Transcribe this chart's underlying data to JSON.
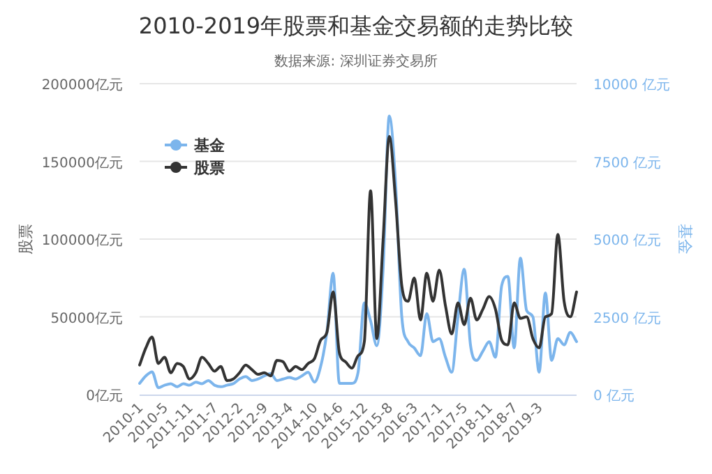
{
  "chart_data": {
    "type": "line",
    "title": "2010-2019年股票和基金交易额的走势比较",
    "subtitle": "数据来源: 深圳证券交易所",
    "ylabel": "股票",
    "y2label": "基金",
    "categories": [
      "2010-1",
      null,
      null,
      null,
      "2010-5",
      null,
      null,
      null,
      "2011-11",
      null,
      null,
      null,
      "2011-7",
      null,
      null,
      null,
      "2012-2",
      null,
      null,
      null,
      "2012-9",
      null,
      null,
      null,
      "2013-4",
      null,
      null,
      null,
      "2014-10",
      null,
      null,
      null,
      "2014-6",
      null,
      null,
      null,
      "2015-12",
      null,
      null,
      null,
      "2015-8",
      null,
      null,
      null,
      "2016-3",
      null,
      null,
      null,
      "2017-1",
      null,
      null,
      null,
      "2017-5",
      null,
      null,
      null,
      "2018-11",
      null,
      null,
      null,
      "2018-7",
      null,
      null,
      null,
      "2019-3",
      null,
      null,
      null,
      null,
      null,
      null
    ],
    "series": [
      {
        "name": "基金",
        "color": "#7cb5ec",
        "axis": "y2",
        "values": [
          360,
          600,
          730,
          220,
          300,
          350,
          250,
          350,
          300,
          400,
          350,
          450,
          300,
          250,
          300,
          350,
          500,
          580,
          450,
          500,
          600,
          670,
          450,
          500,
          550,
          500,
          600,
          720,
          400,
          900,
          2000,
          3900,
          360,
          360,
          360,
          720,
          2950,
          2370,
          1570,
          4000,
          8960,
          6800,
          2500,
          1700,
          1500,
          1250,
          2600,
          1700,
          1800,
          1200,
          720,
          2500,
          4030,
          1600,
          1100,
          1400,
          1700,
          1200,
          3500,
          3800,
          1500,
          4390,
          2700,
          2500,
          720,
          3270,
          1100,
          1800,
          1600,
          2000,
          1700
        ]
      },
      {
        "name": "股票",
        "color": "#333333",
        "values": [
          19000,
          30000,
          37000,
          20000,
          24000,
          14000,
          20000,
          18000,
          10000,
          14000,
          24000,
          20000,
          15000,
          18000,
          9000,
          10000,
          14000,
          19000,
          16000,
          13000,
          14000,
          12000,
          22000,
          21000,
          15000,
          18000,
          16000,
          20000,
          23000,
          35000,
          40000,
          66000,
          27000,
          21000,
          17000,
          25000,
          34000,
          131000,
          36000,
          99000,
          166000,
          125000,
          70000,
          60000,
          75000,
          48000,
          78000,
          60000,
          80000,
          57000,
          39000,
          59000,
          45000,
          62000,
          48000,
          55000,
          63000,
          55000,
          35000,
          32000,
          59000,
          49000,
          50000,
          36000,
          30000,
          50000,
          52000,
          103000,
          60000,
          50000,
          66000
        ]
      }
    ],
    "ylim": [
      0,
      200000
    ],
    "yticks": [
      {
        "value": 0,
        "label": "0亿元"
      },
      {
        "value": 50000,
        "label": "50000亿元"
      },
      {
        "value": 100000,
        "label": "100000亿元"
      },
      {
        "value": 150000,
        "label": "150000亿元"
      },
      {
        "value": 200000,
        "label": "200000亿元"
      }
    ],
    "y2lim": [
      0,
      10000
    ],
    "y2ticks": [
      {
        "value": 0,
        "label": "0 亿元"
      },
      {
        "value": 2500,
        "label": "2500 亿元"
      },
      {
        "value": 5000,
        "label": "5000 亿元"
      },
      {
        "value": 7500,
        "label": "7500 亿元"
      },
      {
        "value": 10000,
        "label": "10000 亿元"
      }
    ],
    "grid": "y",
    "legend": "top left"
  }
}
